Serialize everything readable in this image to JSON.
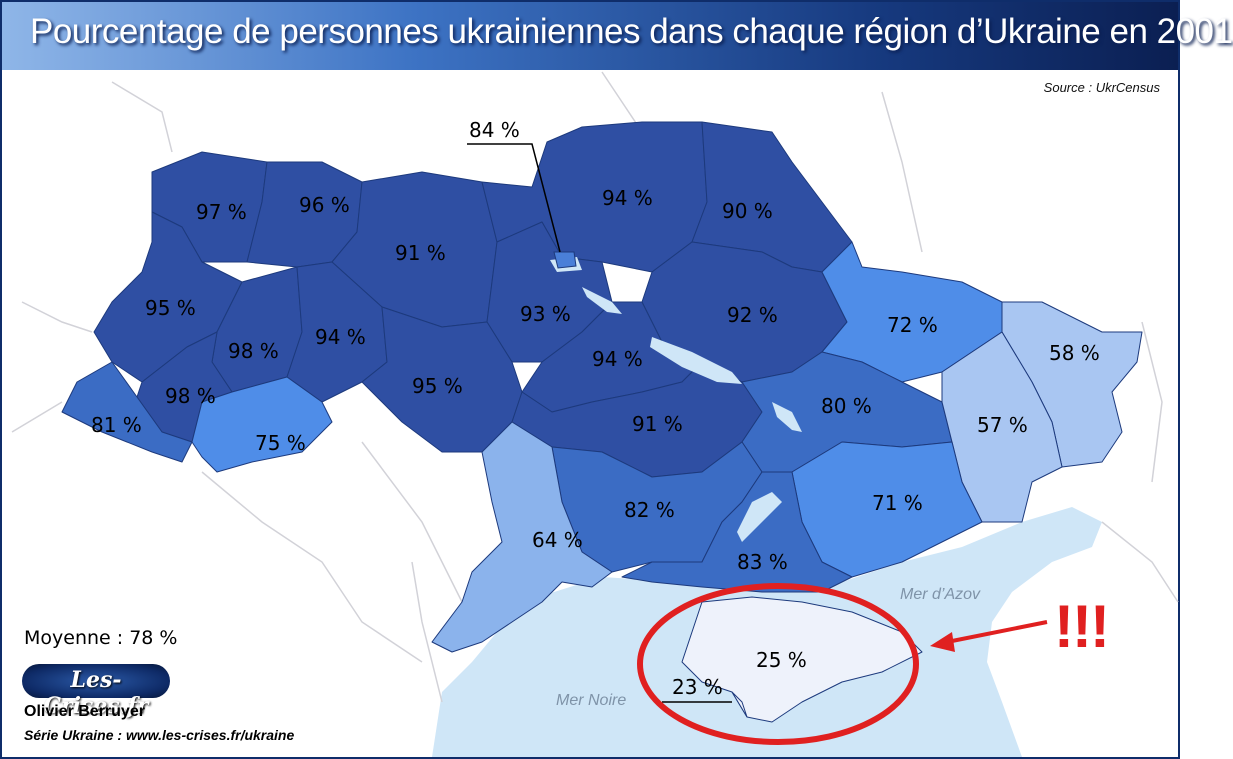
{
  "title": "Pourcentage de personnes ukrainiennes dans chaque région d’Ukraine en 2001",
  "source": "Source : UkrCensus",
  "average": "Moyenne : 78 %",
  "logo": "Les-Crises.fr",
  "author": "Olivier Berruyer",
  "series": "Série Ukraine :  www.les-crises.fr/ukraine",
  "exclamation": "!!!",
  "seas": {
    "black_sea": "Mer Noire",
    "azov_sea": "Mer d’Azov"
  },
  "colors": {
    "title_dark": "#0b1f52",
    "region_high": "#2f4fa3",
    "region_mid": "#3b6cc4",
    "region_72": "#4f8de8",
    "region_light": "#8bb3ec",
    "region_pale": "#a9c6f2",
    "crimea": "#eef2fb",
    "sea": "#cfe6f7",
    "highlight": "#e02020"
  },
  "regions": [
    {
      "id": "volyn",
      "label": "97 %",
      "value": 97
    },
    {
      "id": "rivne",
      "label": "96 %",
      "value": 96
    },
    {
      "id": "zhytomyr",
      "label": "91 %",
      "value": 91
    },
    {
      "id": "kyiv-city",
      "label": "84 %",
      "value": 84
    },
    {
      "id": "chernihiv",
      "label": "94 %",
      "value": 94
    },
    {
      "id": "sumy",
      "label": "90 %",
      "value": 90
    },
    {
      "id": "lviv",
      "label": "95 %",
      "value": 95
    },
    {
      "id": "ternopil",
      "label": "98 %",
      "value": 98
    },
    {
      "id": "khmelnytskyi",
      "label": "94 %",
      "value": 94
    },
    {
      "id": "kyiv-oblast",
      "label": "93 %",
      "value": 93
    },
    {
      "id": "poltava",
      "label": "92 %",
      "value": 92
    },
    {
      "id": "kharkiv",
      "label": "72 %",
      "value": 72
    },
    {
      "id": "luhansk",
      "label": "58 %",
      "value": 58
    },
    {
      "id": "ivano-frankivsk",
      "label": "98 %",
      "value": 98
    },
    {
      "id": "cherkasy",
      "label": "94 %",
      "value": 94
    },
    {
      "id": "vinnytsia",
      "label": "95 %",
      "value": 95
    },
    {
      "id": "zakarpattia",
      "label": "81 %",
      "value": 81
    },
    {
      "id": "chernivtsi",
      "label": "75 %",
      "value": 75
    },
    {
      "id": "kirovohrad",
      "label": "91 %",
      "value": 91
    },
    {
      "id": "dnipropetrovsk",
      "label": "80 %",
      "value": 80
    },
    {
      "id": "donetsk",
      "label": "57 %",
      "value": 57
    },
    {
      "id": "mykolaiv",
      "label": "82 %",
      "value": 82
    },
    {
      "id": "odesa",
      "label": "64 %",
      "value": 64
    },
    {
      "id": "zaporizhzhia",
      "label": "71 %",
      "value": 71
    },
    {
      "id": "kherson",
      "label": "83 %",
      "value": 83
    },
    {
      "id": "crimea",
      "label": "25 %",
      "value": 25
    },
    {
      "id": "sevastopol",
      "label": "23 %",
      "value": 23
    }
  ]
}
